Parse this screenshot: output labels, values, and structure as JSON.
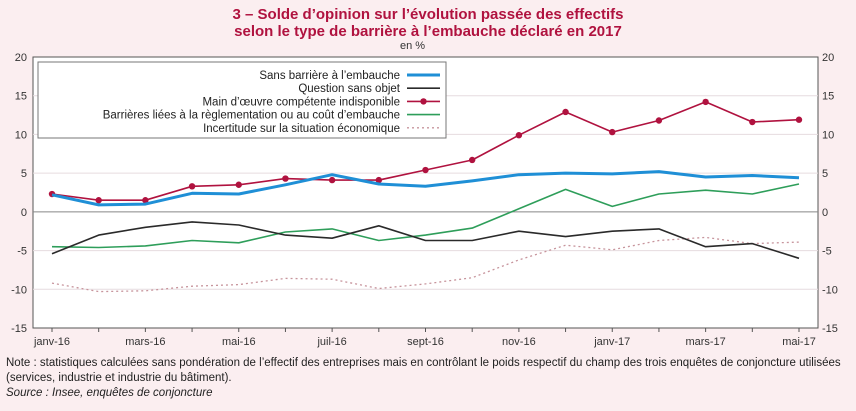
{
  "title_line1": "3 – Solde d’opinion sur l’évolution passée des effectifs",
  "title_line2": "selon le type de barrière à l’embauche déclaré en 2017",
  "unit": "en %",
  "note": "Note : statistiques calculées sans pondération de l’effectif des entreprises mais en contrôlant le poids respectif du champ des trois enquêtes de conjoncture utilisées (services, industrie et industrie du bâtiment).",
  "source": "Source : Insee, enquêtes de conjoncture",
  "chart_data": {
    "type": "line",
    "x": [
      "janv-16",
      "févr-16",
      "mars-16",
      "avr-16",
      "mai-16",
      "juin-16",
      "juil-16",
      "août-16",
      "sept-16",
      "oct-16",
      "nov-16",
      "déc-16",
      "janv-17",
      "févr-17",
      "mars-17",
      "avr-17",
      "mai-17"
    ],
    "x_tick_labels": [
      "janv-16",
      "mars-16",
      "mai-16",
      "juil-16",
      "sept-16",
      "nov-16",
      "janv-17",
      "mars-17",
      "mai-17"
    ],
    "ylim": [
      -15,
      20
    ],
    "y_ticks": [
      -15,
      -10,
      -5,
      0,
      5,
      10,
      15,
      20
    ],
    "grid": true,
    "legend_position": "top-left",
    "series": [
      {
        "name": "Sans barrière à l’embauche",
        "color": "#1f8fd6",
        "style": "thick",
        "values": [
          2.2,
          0.9,
          1.0,
          2.4,
          2.3,
          3.5,
          4.8,
          3.6,
          3.3,
          4.0,
          4.8,
          5.0,
          4.9,
          5.2,
          4.5,
          4.7,
          4.4
        ]
      },
      {
        "name": "Question sans objet",
        "color": "#2a2a2a",
        "style": "solid",
        "values": [
          -5.4,
          -3.0,
          -2.0,
          -1.3,
          -1.7,
          -3.0,
          -3.4,
          -1.8,
          -3.7,
          -3.7,
          -2.5,
          -3.2,
          -2.5,
          -2.2,
          -4.5,
          -4.1,
          -6.0
        ]
      },
      {
        "name": "Main d’œuvre compétente indisponible",
        "color": "#b0123f",
        "style": "markers",
        "values": [
          2.3,
          1.5,
          1.5,
          3.3,
          3.5,
          4.3,
          4.1,
          4.1,
          5.4,
          6.7,
          9.9,
          12.9,
          10.3,
          11.8,
          14.2,
          11.6,
          11.9
        ]
      },
      {
        "name": "Barrières liées à la règlementation ou au coût d’embauche",
        "color": "#2e9e5a",
        "style": "solid",
        "values": [
          -4.5,
          -4.6,
          -4.4,
          -3.7,
          -4.0,
          -2.6,
          -2.2,
          -3.7,
          -3.0,
          -2.1,
          0.4,
          2.9,
          0.7,
          2.3,
          2.8,
          2.3,
          3.6
        ]
      },
      {
        "name": "Incertitude sur la situation économique",
        "color": "#c7949c",
        "style": "dotted",
        "values": [
          -9.2,
          -10.3,
          -10.2,
          -9.6,
          -9.4,
          -8.6,
          -8.7,
          -9.9,
          -9.3,
          -8.5,
          -6.2,
          -4.3,
          -4.9,
          -3.7,
          -3.3,
          -4.1,
          -3.9
        ]
      }
    ]
  }
}
